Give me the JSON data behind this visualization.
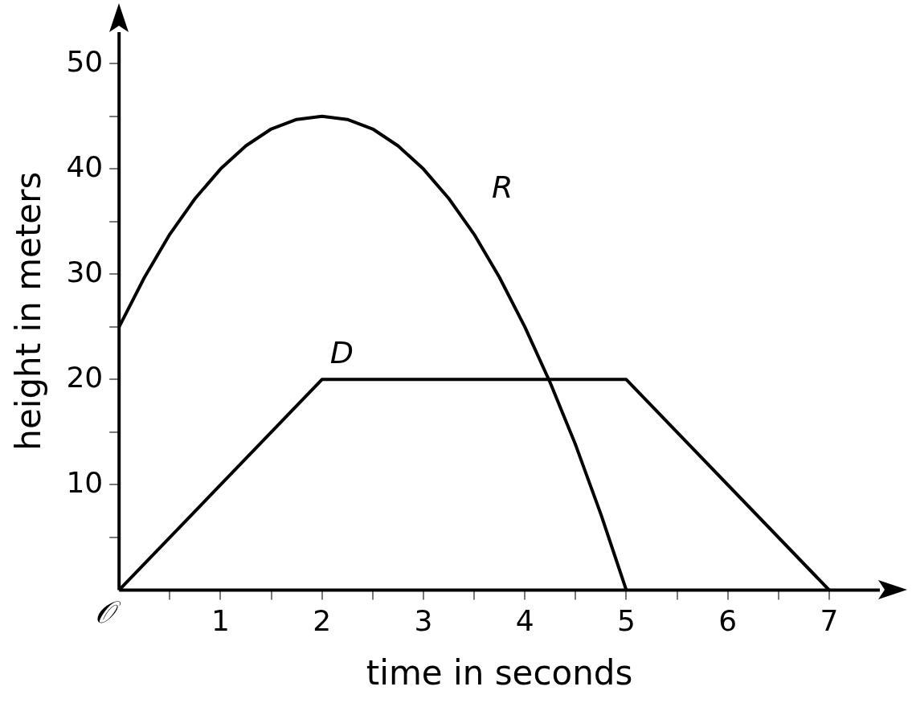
{
  "chart_data": {
    "type": "line",
    "xlabel": "time in seconds",
    "ylabel": "height in meters",
    "xlim": [
      0,
      7.5
    ],
    "ylim": [
      0,
      53
    ],
    "xticks": [
      {
        "value": 0.5,
        "label": null
      },
      1,
      {
        "value": 1.5,
        "label": null
      },
      2,
      {
        "value": 2.5,
        "label": null
      },
      3,
      {
        "value": 3.5,
        "label": null
      },
      4,
      {
        "value": 4.5,
        "label": null
      },
      5,
      {
        "value": 5.5,
        "label": null
      },
      6,
      {
        "value": 6.5,
        "label": null
      },
      7
    ],
    "yticks": [
      {
        "value": 5,
        "label": null
      },
      10,
      {
        "value": 15,
        "label": null
      },
      20,
      {
        "value": 25,
        "label": null
      },
      30,
      {
        "value": 35,
        "label": null
      },
      40,
      {
        "value": 45,
        "label": null
      },
      50
    ],
    "series": [
      {
        "name": "R",
        "color": "#000000",
        "x": [
          0,
          0.25,
          0.5,
          0.75,
          1,
          1.25,
          1.5,
          1.75,
          2,
          2.25,
          2.5,
          2.75,
          3,
          3.25,
          3.5,
          3.75,
          4,
          4.25,
          4.5,
          4.75,
          5
        ],
        "values": [
          25,
          29.7,
          33.8,
          37.2,
          40,
          42.2,
          43.8,
          44.7,
          45,
          44.7,
          43.8,
          42.2,
          40,
          37.2,
          33.8,
          29.7,
          25,
          19.7,
          13.8,
          7.2,
          0
        ]
      },
      {
        "name": "D",
        "color": "#000000",
        "x": [
          0,
          2,
          5,
          7
        ],
        "values": [
          0,
          20,
          20,
          0
        ]
      }
    ],
    "annotations": [
      {
        "text": "𝒪",
        "x": 0,
        "y": 0
      }
    ],
    "grid": false,
    "legend": false,
    "marker": "none",
    "line_style": "solid"
  }
}
